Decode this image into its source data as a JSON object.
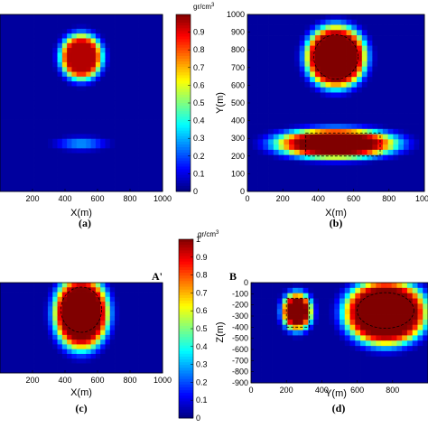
{
  "chart_data": [
    {
      "panel": "a",
      "type": "heatmap",
      "panel_label": "(a)",
      "xlabel": "X(m)",
      "ylabel": "",
      "xticks": [
        200,
        400,
        600,
        800,
        1000
      ],
      "yticks": [],
      "xlim": [
        0,
        1000
      ],
      "ylim": [
        0,
        1000
      ],
      "blobs": [
        {
          "cx": 500,
          "cy": 760,
          "rx": 130,
          "ry": 130,
          "peak": 0.95,
          "core": 0.6
        },
        {
          "cx": 500,
          "cy": 270,
          "rx": 330,
          "ry": 80,
          "peak": 0.3,
          "core": 0.0
        }
      ],
      "colorbar": {
        "unit": "gr/cm",
        "unit_sup": "3",
        "ticks": [
          0,
          0.1,
          0.2,
          0.3,
          0.4,
          0.5,
          0.6,
          0.7,
          0.8,
          0.9
        ],
        "range": [
          0,
          1
        ]
      }
    },
    {
      "panel": "b",
      "type": "heatmap",
      "panel_label": "(b)",
      "xlabel": "X(m)",
      "ylabel": "Y(m)",
      "xticks": [
        0,
        200,
        400,
        600,
        800,
        1000
      ],
      "yticks": [
        0,
        100,
        200,
        300,
        400,
        500,
        600,
        700,
        800,
        900,
        1000
      ],
      "xlim": [
        0,
        1000
      ],
      "ylim": [
        0,
        1000
      ],
      "blobs": [
        {
          "cx": 500,
          "cy": 760,
          "rx": 145,
          "ry": 150,
          "peak": 1.0,
          "core": 0.8
        },
        {
          "cx": 500,
          "cy": 270,
          "rx": 360,
          "ry": 90,
          "peak": 1.0,
          "core": 0.55
        }
      ],
      "outlines": [
        {
          "shape": "circle",
          "cx": 500,
          "cy": 760,
          "r": 125
        },
        {
          "shape": "rect",
          "x0": 330,
          "x1": 750,
          "y0": 200,
          "y1": 330
        }
      ]
    },
    {
      "panel": "c",
      "type": "heatmap",
      "panel_label": "(c)",
      "section_label": "A'",
      "xlabel": "X(m)",
      "ylabel": "",
      "xticks": [
        200,
        400,
        600,
        800,
        1000
      ],
      "yticks": [],
      "xlim": [
        0,
        1000
      ],
      "ylim": [
        -500,
        0
      ],
      "blobs": [
        {
          "cx": 500,
          "cy": -170,
          "rx": 150,
          "ry": 180,
          "peak": 1.0,
          "core": 0.75
        }
      ],
      "outlines": [
        {
          "shape": "circle",
          "cx": 500,
          "cy": -150,
          "r": 125
        }
      ],
      "colorbar": {
        "unit": "gr/cm",
        "unit_sup": "3",
        "ticks": [
          0,
          0.1,
          0.2,
          0.3,
          0.4,
          0.5,
          0.6,
          0.7,
          0.8,
          0.9,
          1
        ],
        "range": [
          0,
          1
        ]
      }
    },
    {
      "panel": "d",
      "type": "heatmap",
      "panel_label": "(d)",
      "section_label": "B",
      "xlabel": "Y(m)",
      "ylabel": "Z(m)",
      "xticks": [
        0,
        200,
        400,
        600,
        800
      ],
      "yticks": [
        0,
        -100,
        -200,
        -300,
        -400,
        -500,
        -600,
        -700,
        -800,
        -900
      ],
      "xlim": [
        0,
        1000
      ],
      "ylim": [
        -900,
        0
      ],
      "blobs": [
        {
          "cx": 260,
          "cy": -260,
          "rx": 95,
          "ry": 190,
          "peak": 1.0,
          "core": 0.5
        },
        {
          "cx": 760,
          "cy": -270,
          "rx": 200,
          "ry": 250,
          "peak": 1.0,
          "core": 0.8
        }
      ],
      "outlines": [
        {
          "shape": "rect",
          "x0": 200,
          "x1": 330,
          "y0": -400,
          "y1": -140
        },
        {
          "shape": "circle",
          "cx": 760,
          "cy": -250,
          "r": 160
        }
      ]
    }
  ]
}
